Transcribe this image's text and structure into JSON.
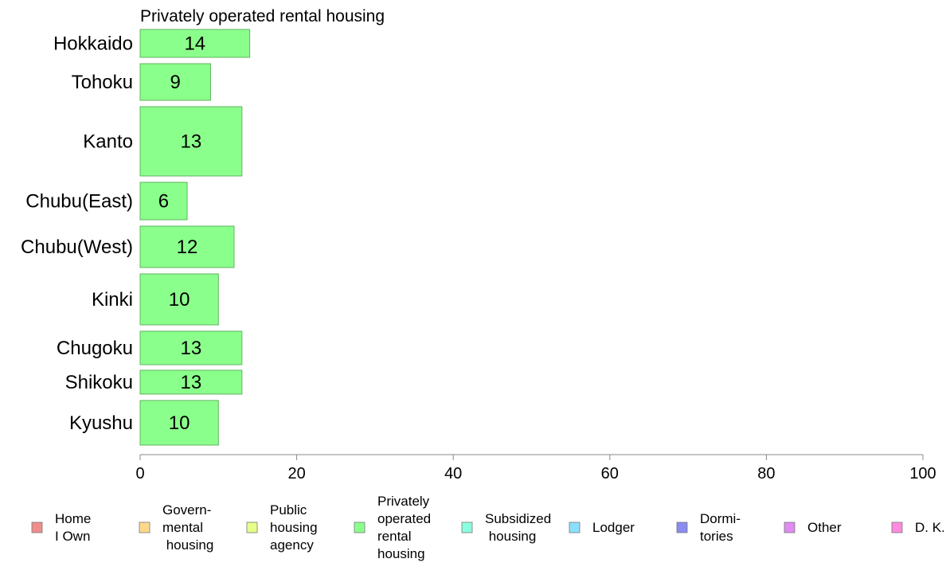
{
  "chart_data": {
    "type": "bar",
    "orientation": "horizontal",
    "title": "Privately operated rental housing",
    "categories": [
      "Hokkaido",
      "Tohoku",
      "Kanto",
      "Chubu(East)",
      "Chubu(West)",
      "Kinki",
      "Chugoku",
      "Shikoku",
      "Kyushu"
    ],
    "values": [
      14,
      9,
      13,
      6,
      12,
      10,
      13,
      13,
      10
    ],
    "value_labels": [
      "14",
      "9",
      "13",
      "6",
      "12",
      "10",
      "13",
      "13",
      "10"
    ],
    "xlim": [
      0,
      100
    ],
    "x_ticks": [
      "0",
      "20",
      "40",
      "60",
      "80",
      "100"
    ],
    "bar_color": "#8bff8b",
    "bar_border": "#5fb35f",
    "legend_placement": "bottom",
    "legend": [
      {
        "label": [
          "Home",
          "I Own"
        ],
        "color": "#f08c8c"
      },
      {
        "label": [
          "Govern-",
          "mental",
          " housing"
        ],
        "color": "#ffd98a"
      },
      {
        "label": [
          "Public",
          "housing",
          "agency"
        ],
        "color": "#e6ff8a"
      },
      {
        "label": [
          "Privately",
          "operated",
          "rental",
          "housing"
        ],
        "color": "#8bff8b"
      },
      {
        "label": [
          "Subsidized",
          " housing"
        ],
        "color": "#8bffdf"
      },
      {
        "label": [
          "Lodger"
        ],
        "color": "#8bdfff"
      },
      {
        "label": [
          "Dormi-",
          "tories"
        ],
        "color": "#8b8bf0"
      },
      {
        "label": [
          "Other"
        ],
        "color": "#df8bf0"
      },
      {
        "label": [
          "D. K."
        ],
        "color": "#ff8bdf"
      }
    ]
  }
}
